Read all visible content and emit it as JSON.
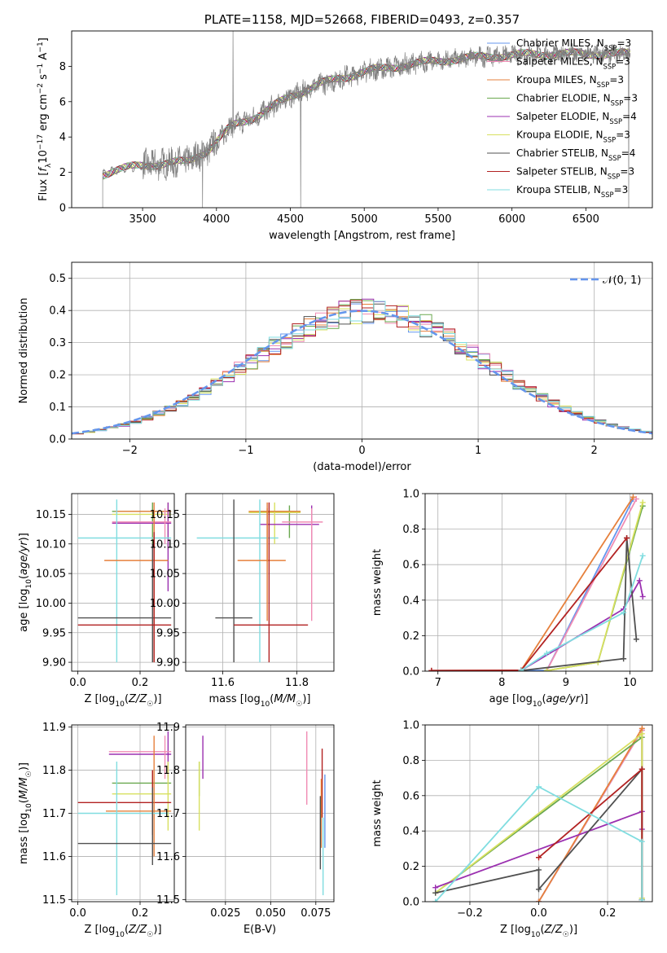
{
  "chart_data": [
    {
      "id": "spectrum",
      "type": "line",
      "title": "PLATE=1158, MJD=52668, FIBERID=0493, z=0.357",
      "xlabel": "wavelength [Angstrom, rest frame]",
      "ylabel": "Flux [f_λ 10^-17 erg cm^-2 s^-1 A^-1]",
      "xlim": [
        3020,
        6950
      ],
      "ylim": [
        0,
        10
      ],
      "xticks": [
        3500,
        4000,
        4500,
        5000,
        5500,
        6000,
        6500
      ],
      "yticks": [
        0,
        2,
        4,
        6,
        8
      ],
      "legend_position": "top-right",
      "observed_spectrum_color": "#808080",
      "continuum_anchor_points": {
        "x": [
          3230,
          3300,
          3500,
          3800,
          3950,
          4100,
          4300,
          4500,
          4700,
          5000,
          5300,
          5600,
          5900,
          6200,
          6500,
          6800
        ],
        "y": [
          1.9,
          2.1,
          2.4,
          2.6,
          3.3,
          4.6,
          5.3,
          6.3,
          7.0,
          7.7,
          8.1,
          8.4,
          8.6,
          8.7,
          8.7,
          8.7
        ]
      },
      "legend": [
        {
          "label": "Chabrier MILES, N",
          "sub": "SSP",
          "value": "=3",
          "color": "#6495ed"
        },
        {
          "label": "Salpeter MILES, N",
          "sub": "SSP",
          "value": "=3",
          "color": "#f08cb4"
        },
        {
          "label": "Kroupa MILES, N",
          "sub": "SSP",
          "value": "=3",
          "color": "#e6803c"
        },
        {
          "label": "Chabrier ELODIE, N",
          "sub": "SSP",
          "value": "=3",
          "color": "#6aa84f"
        },
        {
          "label": "Salpeter ELODIE, N",
          "sub": "SSP",
          "value": "=4",
          "color": "#9b30b0"
        },
        {
          "label": "Kroupa ELODIE, N",
          "sub": "SSP",
          "value": "=3",
          "color": "#d8e060"
        },
        {
          "label": "Chabrier STELIB, N",
          "sub": "SSP",
          "value": "=4",
          "color": "#505050"
        },
        {
          "label": "Salpeter STELIB, N",
          "sub": "SSP",
          "value": "=3",
          "color": "#b22222"
        },
        {
          "label": "Kroupa STELIB, N",
          "sub": "SSP",
          "value": "=3",
          "color": "#80dde0"
        }
      ]
    },
    {
      "id": "residuals",
      "type": "line",
      "xlabel": "(data-model)/error",
      "ylabel": "Normed distribution",
      "xlim": [
        -2.5,
        2.5
      ],
      "ylim": [
        0,
        0.55
      ],
      "xticks": [
        -2,
        -1,
        0,
        1,
        2
      ],
      "yticks": [
        0.0,
        0.1,
        0.2,
        0.3,
        0.4,
        0.5
      ],
      "grid": true,
      "legend_position": "top-right",
      "gaussian": {
        "label": "𝒩(0, 1)",
        "mean": 0,
        "sigma": 1,
        "color": "#6495ed"
      },
      "histogram_bin_width": 0.1
    },
    {
      "id": "age_vs_Z",
      "type": "errorbar",
      "xlabel": "Z [log10(Z/Z☉)]",
      "ylabel": "age  [log10(age/yr)]",
      "xlim": [
        -0.02,
        0.31
      ],
      "ylim": [
        9.885,
        10.185
      ],
      "xticks": [
        0.0,
        0.2
      ],
      "yticks": [
        9.9,
        9.95,
        10.0,
        10.05,
        10.1,
        10.15
      ],
      "grid": true,
      "points": [
        {
          "color": "#6aa84f",
          "x": 0.24,
          "xerr": [
            0.11,
            0.3
          ],
          "y": 10.155,
          "yerr": [
            10.1,
            10.17
          ]
        },
        {
          "color": "#d8e060",
          "x": 0.29,
          "xerr": [
            0.11,
            0.3
          ],
          "y": 10.15,
          "yerr": [
            10.09,
            10.17
          ]
        },
        {
          "color": "#e6803c",
          "x": 0.245,
          "xerr": [
            0.12,
            0.3
          ],
          "y": 10.155,
          "yerr": [
            9.96,
            10.17
          ]
        },
        {
          "color": "#9b30b0",
          "x": 0.29,
          "xerr": [
            0.11,
            0.3
          ],
          "y": 10.135,
          "yerr": [
            10.02,
            10.17
          ]
        },
        {
          "color": "#f08cb4",
          "x": 0.28,
          "xerr": [
            0.11,
            0.3
          ],
          "y": 10.137,
          "yerr": [
            10.1,
            10.16
          ]
        },
        {
          "color": "#80dde0",
          "x": 0.125,
          "xerr": [
            0.0,
            0.3
          ],
          "y": 10.11,
          "yerr": [
            9.9,
            10.175
          ]
        },
        {
          "color": "#e6803c",
          "x": 0.245,
          "xerr": [
            0.085,
            0.29
          ],
          "y": 10.072,
          "yerr": [
            9.9,
            10.14
          ]
        },
        {
          "color": "#505050",
          "x": 0.24,
          "xerr": [
            0.0,
            0.3
          ],
          "y": 9.975,
          "yerr": [
            9.9,
            10.1
          ]
        },
        {
          "color": "#b22222",
          "x": 0.245,
          "xerr": [
            0.0,
            0.3
          ],
          "y": 9.963,
          "yerr": [
            9.9,
            10.12
          ]
        }
      ]
    },
    {
      "id": "age_vs_mass",
      "type": "errorbar",
      "xlabel": "mass [log10(M/M☉)]",
      "ylabel": "",
      "xlim": [
        11.5,
        11.9
      ],
      "ylim": [
        9.885,
        10.185
      ],
      "xticks": [
        11.6,
        11.8
      ],
      "yticks": [
        9.9,
        9.95,
        10.0,
        10.05,
        10.1,
        10.15
      ],
      "grid": true,
      "points": [
        {
          "color": "#6aa84f",
          "x": 11.78,
          "xerr": [
            11.7,
            11.81
          ],
          "y": 10.155,
          "yerr": [
            10.11,
            10.165
          ]
        },
        {
          "color": "#d8e060",
          "x": 11.74,
          "xerr": [
            11.67,
            11.81
          ],
          "y": 10.153,
          "yerr": [
            10.1,
            10.17
          ]
        },
        {
          "color": "#e6803c",
          "x": 11.72,
          "xerr": [
            11.67,
            11.81
          ],
          "y": 10.155,
          "yerr": [
            10.07,
            10.17
          ]
        },
        {
          "color": "#9b30b0",
          "x": 11.84,
          "xerr": [
            11.7,
            11.86
          ],
          "y": 10.133,
          "yerr": [
            10.09,
            10.165
          ]
        },
        {
          "color": "#f08cb4",
          "x": 11.84,
          "xerr": [
            11.76,
            11.87
          ],
          "y": 10.137,
          "yerr": [
            9.97,
            10.16
          ]
        },
        {
          "color": "#80dde0",
          "x": 11.7,
          "xerr": [
            11.53,
            11.75
          ],
          "y": 10.11,
          "yerr": [
            9.9,
            10.175
          ]
        },
        {
          "color": "#e6803c",
          "x": 11.72,
          "xerr": [
            11.64,
            11.77
          ],
          "y": 10.072,
          "yerr": [
            9.97,
            10.16
          ]
        },
        {
          "color": "#505050",
          "x": 11.63,
          "xerr": [
            11.58,
            11.68
          ],
          "y": 9.975,
          "yerr": [
            9.9,
            10.175
          ]
        },
        {
          "color": "#b22222",
          "x": 11.725,
          "xerr": [
            11.63,
            11.83
          ],
          "y": 9.963,
          "yerr": [
            9.9,
            10.17
          ]
        }
      ]
    },
    {
      "id": "weight_vs_age",
      "type": "line",
      "xlabel": "age  [log10(age/yr)]",
      "ylabel": "mass weight",
      "xlim": [
        6.8,
        10.35
      ],
      "ylim": [
        0,
        1
      ],
      "xticks": [
        7,
        8,
        9,
        10
      ],
      "yticks": [
        0.0,
        0.2,
        0.4,
        0.6,
        0.8,
        1.0
      ],
      "grid": true,
      "series": [
        {
          "color": "#6495ed",
          "x": [
            6.9,
            8.7,
            10.05
          ],
          "y": [
            0.003,
            0.004,
            0.97
          ]
        },
        {
          "color": "#f08cb4",
          "x": [
            8.7,
            10.1
          ],
          "y": [
            0.003,
            0.97
          ]
        },
        {
          "color": "#e6803c",
          "x": [
            6.9,
            8.3,
            10.05
          ],
          "y": [
            0.003,
            0.005,
            0.98
          ]
        },
        {
          "color": "#6aa84f",
          "x": [
            8.7,
            9.5,
            10.2
          ],
          "y": [
            0.003,
            0.05,
            0.93
          ]
        },
        {
          "color": "#9b30b0",
          "x": [
            8.3,
            9.9,
            10.15,
            10.2
          ],
          "y": [
            0.004,
            0.35,
            0.51,
            0.42
          ]
        },
        {
          "color": "#d8e060",
          "x": [
            8.7,
            9.5,
            10.2
          ],
          "y": [
            0.003,
            0.05,
            0.95
          ]
        },
        {
          "color": "#505050",
          "x": [
            8.3,
            9.9,
            9.95,
            10.1
          ],
          "y": [
            0.003,
            0.07,
            0.75,
            0.18
          ]
        },
        {
          "color": "#b22222",
          "x": [
            6.9,
            8.3,
            9.95
          ],
          "y": [
            0.003,
            0.005,
            0.75
          ]
        },
        {
          "color": "#80dde0",
          "x": [
            8.3,
            8.7,
            9.9,
            10.2
          ],
          "y": [
            0.004,
            0.1,
            0.33,
            0.65
          ]
        }
      ]
    },
    {
      "id": "mass_vs_Z",
      "type": "errorbar",
      "xlabel": "Z [log10(Z/Z☉)]",
      "ylabel": "mass [log10(M/M☉)]",
      "xlim": [
        -0.02,
        0.31
      ],
      "ylim": [
        11.495,
        11.905
      ],
      "xticks": [
        0.0,
        0.2
      ],
      "yticks": [
        11.5,
        11.6,
        11.7,
        11.8,
        11.9
      ],
      "grid": true,
      "points": [
        {
          "color": "#9b30b0",
          "x": 0.29,
          "xerr": [
            0.1,
            0.3
          ],
          "y": 11.837,
          "yerr": [
            11.78,
            11.89
          ]
        },
        {
          "color": "#f08cb4",
          "x": 0.28,
          "xerr": [
            0.1,
            0.3
          ],
          "y": 11.843,
          "yerr": [
            11.78,
            11.88
          ]
        },
        {
          "color": "#6aa84f",
          "x": 0.24,
          "xerr": [
            0.11,
            0.3
          ],
          "y": 11.77,
          "yerr": [
            11.73,
            11.8
          ]
        },
        {
          "color": "#d8e060",
          "x": 0.29,
          "xerr": [
            0.11,
            0.3
          ],
          "y": 11.745,
          "yerr": [
            11.66,
            11.82
          ]
        },
        {
          "color": "#b22222",
          "x": 0.24,
          "xerr": [
            0.0,
            0.3
          ],
          "y": 11.725,
          "yerr": [
            11.65,
            11.8
          ]
        },
        {
          "color": "#e6803c",
          "x": 0.245,
          "xerr": [
            0.09,
            0.3
          ],
          "y": 11.705,
          "yerr": [
            11.6,
            11.88
          ]
        },
        {
          "color": "#80dde0",
          "x": 0.125,
          "xerr": [
            0.0,
            0.29
          ],
          "y": 11.7,
          "yerr": [
            11.51,
            11.82
          ]
        },
        {
          "color": "#505050",
          "x": 0.24,
          "xerr": [
            0.0,
            0.3
          ],
          "y": 11.63,
          "yerr": [
            11.58,
            11.76
          ]
        }
      ]
    },
    {
      "id": "mass_vs_ebv",
      "type": "errorbar",
      "xlabel": "E(B-V)",
      "ylabel": "",
      "xlim": [
        0.003,
        0.085
      ],
      "ylim": [
        11.495,
        11.905
      ],
      "xticks": [
        0.025,
        0.05,
        0.075
      ],
      "xtick_labels": [
        "0.025",
        "0.050",
        "0.075"
      ],
      "yticks": [
        11.5,
        11.6,
        11.7,
        11.8,
        11.9
      ],
      "grid": true,
      "points": [
        {
          "color": "#6aa84f",
          "x": 0.0105,
          "xerr": [
            0.0105,
            0.0105
          ],
          "y": 11.78,
          "yerr": [
            11.74,
            11.82
          ]
        },
        {
          "color": "#d8e060",
          "x": 0.0105,
          "xerr": [
            0.0105,
            0.0105
          ],
          "y": 11.74,
          "yerr": [
            11.66,
            11.82
          ]
        },
        {
          "color": "#9b30b0",
          "x": 0.0125,
          "xerr": [
            0.0125,
            0.0125
          ],
          "y": 11.83,
          "yerr": [
            11.78,
            11.88
          ]
        },
        {
          "color": "#f08cb4",
          "x": 0.07,
          "xerr": [
            0.07,
            0.07
          ],
          "y": 11.8,
          "yerr": [
            11.72,
            11.89
          ]
        },
        {
          "color": "#b22222",
          "x": 0.0785,
          "xerr": [
            0.0785,
            0.0785
          ],
          "y": 11.77,
          "yerr": [
            11.69,
            11.85
          ]
        },
        {
          "color": "#e6803c",
          "x": 0.078,
          "xerr": [
            0.078,
            0.078
          ],
          "y": 11.7,
          "yerr": [
            11.62,
            11.78
          ]
        },
        {
          "color": "#505050",
          "x": 0.0775,
          "xerr": [
            0.0775,
            0.0775
          ],
          "y": 11.66,
          "yerr": [
            11.57,
            11.74
          ]
        },
        {
          "color": "#80dde0",
          "x": 0.079,
          "xerr": [
            0.079,
            0.079
          ],
          "y": 11.6,
          "yerr": [
            11.51,
            11.69
          ]
        },
        {
          "color": "#6495ed",
          "x": 0.08,
          "xerr": [
            0.08,
            0.08
          ],
          "y": 11.71,
          "yerr": [
            11.62,
            11.79
          ]
        }
      ]
    },
    {
      "id": "weight_vs_Z",
      "type": "line",
      "xlabel": "Z [log10(Z/Z☉)]",
      "ylabel": "mass weight",
      "xlim": [
        -0.33,
        0.33
      ],
      "ylim": [
        0,
        1
      ],
      "xticks": [
        -0.2,
        0.0,
        0.2
      ],
      "yticks": [
        0.0,
        0.2,
        0.4,
        0.6,
        0.8,
        1.0
      ],
      "grid": true,
      "series": [
        {
          "color": "#6495ed",
          "x": [
            0.0,
            0.3,
            0.3
          ],
          "y": [
            0.0,
            0.97,
            0.01
          ]
        },
        {
          "color": "#f08cb4",
          "x": [
            0.0,
            0.3,
            0.3
          ],
          "y": [
            0.0,
            0.97,
            0.01
          ]
        },
        {
          "color": "#e6803c",
          "x": [
            0.0,
            0.3,
            0.3
          ],
          "y": [
            0.0,
            0.98,
            0.01
          ]
        },
        {
          "color": "#6aa84f",
          "x": [
            -0.3,
            0.3,
            0.3
          ],
          "y": [
            0.05,
            0.93,
            0.02
          ]
        },
        {
          "color": "#d8e060",
          "x": [
            -0.3,
            0.3,
            0.3
          ],
          "y": [
            0.05,
            0.95,
            0.02
          ]
        },
        {
          "color": "#9b30b0",
          "x": [
            -0.3,
            0.3,
            0.3
          ],
          "y": [
            0.08,
            0.51,
            0.41
          ]
        },
        {
          "color": "#505050",
          "x": [
            -0.3,
            0.0,
            0.0,
            0.3,
            0.3
          ],
          "y": [
            0.05,
            0.18,
            0.07,
            0.75,
            0.01
          ]
        },
        {
          "color": "#b22222",
          "x": [
            0.0,
            0.3,
            0.3
          ],
          "y": [
            0.25,
            0.75,
            0.01
          ]
        },
        {
          "color": "#80dde0",
          "x": [
            -0.3,
            0.0,
            0.3,
            0.3
          ],
          "y": [
            0.0,
            0.65,
            0.34,
            0.01
          ]
        }
      ]
    }
  ]
}
